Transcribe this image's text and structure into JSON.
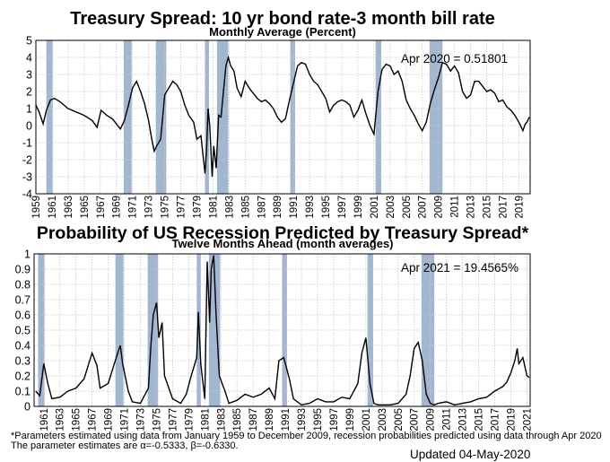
{
  "footnote": {
    "line1": "*Parameters estimated using data from January 1959 to December 2009, recession probabilities predicted using data through Apr 2020",
    "line2": "The parameter estimates are α=-0.5333, β=-0.6330."
  },
  "updated": "Updated 04-May-2020",
  "colors": {
    "recession_band": "#a3b6cf",
    "line": "#000000",
    "grid": "#c8c8c8"
  },
  "chart_data": [
    {
      "type": "line",
      "title": "Treasury Spread: 10 yr bond rate-3 month bill rate",
      "subtitle": "Monthly Average (Percent)",
      "annotation": "Apr 2020 = 0.51801",
      "ylim": [
        -4,
        5
      ],
      "y_ticks": [
        "5",
        "4",
        "3",
        "2",
        "1",
        "0",
        "-1",
        "-2",
        "-3",
        "-4"
      ],
      "x_ticks": [
        "1959",
        "1961",
        "1963",
        "1965",
        "1967",
        "1969",
        "1971",
        "1973",
        "1975",
        "1977",
        "1979",
        "1981",
        "1983",
        "1985",
        "1987",
        "1989",
        "1991",
        "1993",
        "1995",
        "1997",
        "1999",
        "2001",
        "2003",
        "2005",
        "2007",
        "2009",
        "2011",
        "2013",
        "2015",
        "2017",
        "2019"
      ],
      "grid": true,
      "recessions": [
        [
          1960.3,
          1961.1
        ],
        [
          1969.9,
          1970.9
        ],
        [
          1973.9,
          1975.2
        ],
        [
          1980.0,
          1980.5
        ],
        [
          1981.5,
          1982.9
        ],
        [
          1990.6,
          1991.2
        ],
        [
          2001.2,
          2001.9
        ],
        [
          2007.9,
          2009.5
        ]
      ],
      "series": [
        {
          "x": [
            1959.0,
            1959.4,
            1959.9,
            1960.3,
            1960.8,
            1961.3,
            1962.0,
            1963.0,
            1964.0,
            1965.0,
            1966.0,
            1966.6,
            1967.1,
            1967.8,
            1968.5,
            1969.0,
            1969.5,
            1970.0,
            1970.5,
            1971.0,
            1971.5,
            1972.0,
            1972.5,
            1973.0,
            1973.4,
            1973.7,
            1974.0,
            1974.5,
            1975.0,
            1975.5,
            1976.0,
            1976.5,
            1977.0,
            1977.5,
            1978.0,
            1978.6,
            1979.0,
            1979.5,
            1980.0,
            1980.2,
            1980.4,
            1980.6,
            1980.9,
            1981.1,
            1981.4,
            1981.7,
            1982.0,
            1982.3,
            1982.6,
            1982.9,
            1983.2,
            1983.6,
            1984.0,
            1984.5,
            1985.0,
            1985.5,
            1986.0,
            1986.5,
            1987.0,
            1987.5,
            1988.0,
            1988.5,
            1989.0,
            1989.5,
            1990.0,
            1990.5,
            1991.0,
            1991.5,
            1992.0,
            1992.5,
            1993.0,
            1993.5,
            1994.0,
            1994.5,
            1995.0,
            1995.5,
            1996.0,
            1996.5,
            1997.0,
            1997.5,
            1998.0,
            1998.5,
            1999.0,
            1999.5,
            2000.0,
            2000.5,
            2001.0,
            2001.5,
            2002.0,
            2002.5,
            2003.0,
            2003.5,
            2004.0,
            2004.5,
            2005.0,
            2005.5,
            2006.0,
            2006.5,
            2007.0,
            2007.5,
            2008.0,
            2008.5,
            2009.0,
            2009.5,
            2010.0,
            2010.5,
            2011.0,
            2011.5,
            2012.0,
            2012.5,
            2013.0,
            2013.5,
            2014.0,
            2014.5,
            2015.0,
            2015.5,
            2016.0,
            2016.5,
            2017.0,
            2017.5,
            2018.0,
            2018.5,
            2019.0,
            2019.5,
            2019.8,
            2020.0,
            2020.3
          ],
          "y": [
            1.2,
            0.8,
            0.1,
            0.9,
            1.5,
            1.6,
            1.4,
            1.0,
            0.8,
            0.6,
            0.3,
            -0.1,
            0.9,
            0.6,
            0.4,
            0.1,
            -0.2,
            0.3,
            1.2,
            2.2,
            2.6,
            2.0,
            1.3,
            0.3,
            -0.8,
            -1.5,
            -1.2,
            -0.8,
            1.8,
            2.2,
            2.6,
            2.4,
            2.0,
            1.2,
            0.6,
            0.2,
            -0.8,
            -0.6,
            -2.8,
            -1.5,
            1.0,
            0.0,
            -3.0,
            -1.2,
            -2.5,
            0.6,
            0.5,
            2.0,
            3.5,
            4.0,
            3.5,
            3.2,
            2.2,
            1.7,
            2.6,
            2.2,
            1.9,
            1.6,
            1.4,
            1.5,
            1.3,
            1.0,
            0.5,
            0.2,
            0.4,
            1.5,
            2.5,
            3.5,
            3.7,
            3.6,
            3.0,
            2.6,
            2.4,
            2.0,
            1.6,
            0.8,
            1.2,
            1.4,
            1.5,
            1.4,
            1.2,
            0.5,
            0.9,
            1.5,
            0.7,
            0.0,
            -0.5,
            2.0,
            3.3,
            3.6,
            3.5,
            3.0,
            3.2,
            2.6,
            1.5,
            1.0,
            0.6,
            0.1,
            -0.3,
            0.2,
            1.3,
            2.1,
            2.8,
            3.7,
            3.6,
            3.2,
            3.5,
            3.1,
            2.0,
            1.6,
            1.8,
            2.6,
            2.6,
            2.3,
            2.0,
            2.1,
            1.9,
            1.4,
            1.5,
            1.1,
            0.9,
            0.6,
            0.2,
            -0.3,
            0.1,
            0.2,
            0.5
          ]
        }
      ]
    },
    {
      "type": "line",
      "title": "Probability of US Recession Predicted by Treasury Spread*",
      "subtitle": "Twelve Months Ahead (month averages)",
      "annotation": "Apr 2021 = 19.4565%",
      "ylim": [
        0,
        1
      ],
      "y_ticks": [
        "1",
        "0.9",
        "0.8",
        "0.7",
        "0.6",
        "0.5",
        "0.4",
        "0.3",
        "0.2",
        "0.1",
        "0"
      ],
      "x_ticks": [
        "1961",
        "1963",
        "1965",
        "1967",
        "1969",
        "1971",
        "1973",
        "1975",
        "1977",
        "1979",
        "1981",
        "1983",
        "1985",
        "1987",
        "1989",
        "1991",
        "1993",
        "1995",
        "1997",
        "1999",
        "2001",
        "2003",
        "2005",
        "2007",
        "2009",
        "2011",
        "2013",
        "2015",
        "2017",
        "2019",
        "2021"
      ],
      "grid": true,
      "recessions": [
        [
          1960.3,
          1961.1
        ],
        [
          1969.9,
          1970.9
        ],
        [
          1973.9,
          1975.2
        ],
        [
          1980.0,
          1980.5
        ],
        [
          1981.5,
          1982.9
        ],
        [
          1990.6,
          1991.2
        ],
        [
          2001.2,
          2001.9
        ],
        [
          2007.9,
          2009.5
        ]
      ],
      "series": [
        {
          "x": [
            1960.0,
            1960.5,
            1961.0,
            1961.5,
            1962.0,
            1963.0,
            1964.0,
            1965.0,
            1966.0,
            1967.0,
            1967.6,
            1968.0,
            1969.0,
            1970.0,
            1970.5,
            1970.8,
            1971.5,
            1972.0,
            1973.0,
            1974.0,
            1974.3,
            1974.6,
            1975.0,
            1975.3,
            1975.7,
            1976.0,
            1977.0,
            1978.0,
            1978.7,
            1979.3,
            1980.0,
            1980.2,
            1980.5,
            1981.0,
            1981.3,
            1981.6,
            1981.8,
            1982.1,
            1982.4,
            1982.8,
            1983.5,
            1984.0,
            1985.0,
            1986.0,
            1987.0,
            1988.0,
            1989.0,
            1989.7,
            1990.2,
            1990.8,
            1991.5,
            1992.0,
            1993.0,
            1994.0,
            1995.0,
            1996.0,
            1997.0,
            1998.0,
            1999.0,
            2000.0,
            2000.5,
            2001.0,
            2001.5,
            2002.0,
            2002.5,
            2003.0,
            2004.0,
            2005.0,
            2006.0,
            2006.5,
            2007.0,
            2007.5,
            2008.0,
            2008.5,
            2009.0,
            2009.5,
            2010.0,
            2011.0,
            2012.0,
            2013.0,
            2014.0,
            2015.0,
            2016.0,
            2017.0,
            2018.0,
            2018.5,
            2019.0,
            2019.5,
            2019.8,
            2020.0,
            2020.5,
            2021.0,
            2021.3
          ],
          "y": [
            0.1,
            0.07,
            0.28,
            0.15,
            0.05,
            0.06,
            0.1,
            0.12,
            0.18,
            0.35,
            0.27,
            0.12,
            0.15,
            0.32,
            0.4,
            0.28,
            0.1,
            0.03,
            0.02,
            0.12,
            0.4,
            0.6,
            0.68,
            0.45,
            0.55,
            0.2,
            0.05,
            0.02,
            0.08,
            0.2,
            0.32,
            0.62,
            0.28,
            0.05,
            0.95,
            0.55,
            0.9,
            0.99,
            0.6,
            0.2,
            0.1,
            0.02,
            0.04,
            0.08,
            0.06,
            0.08,
            0.12,
            0.05,
            0.3,
            0.32,
            0.18,
            0.05,
            0.01,
            0.02,
            0.05,
            0.03,
            0.03,
            0.06,
            0.05,
            0.15,
            0.35,
            0.45,
            0.15,
            0.02,
            0.01,
            0.01,
            0.01,
            0.02,
            0.08,
            0.2,
            0.38,
            0.42,
            0.3,
            0.08,
            0.02,
            0.01,
            0.02,
            0.03,
            0.01,
            0.02,
            0.03,
            0.05,
            0.06,
            0.1,
            0.13,
            0.16,
            0.22,
            0.3,
            0.38,
            0.28,
            0.32,
            0.2,
            0.19
          ]
        }
      ]
    }
  ]
}
